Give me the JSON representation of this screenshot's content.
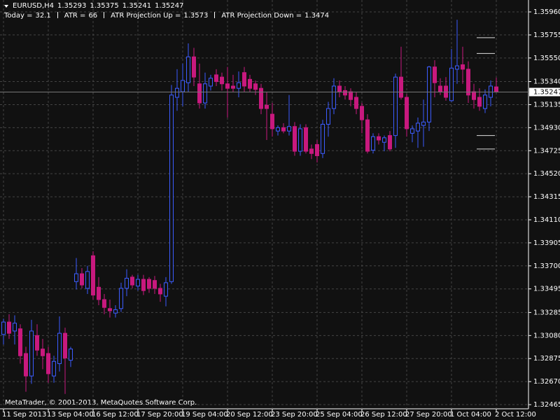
{
  "chart_data": {
    "type": "candlestick",
    "symbol": "EURUSD,H4",
    "footer": "MetaTrader, © 2001-2013, MetaQuotes Software Corp.",
    "up_color": "#3c5cff",
    "down_color": "#c8197e",
    "grid": true,
    "categories": [
      "11 Sep 2013",
      null,
      null,
      null,
      null,
      null,
      null,
      null,
      "13 Sep 04:00",
      null,
      null,
      null,
      null,
      null,
      null,
      null,
      "16 Sep 12:00",
      null,
      null,
      null,
      null,
      null,
      null,
      null,
      "17 Sep 20:00",
      null,
      null,
      null,
      null,
      null,
      null,
      null,
      "19 Sep 04:00",
      null,
      null,
      null,
      null,
      null,
      null,
      null,
      "20 Sep 12:00",
      null,
      null,
      null,
      null,
      null,
      null,
      null,
      "23 Sep 20:00",
      null,
      null,
      null,
      null,
      null,
      null,
      null,
      "25 Sep 04:00",
      null,
      null,
      null,
      null,
      null,
      null,
      null,
      "26 Sep 12:00",
      null,
      null,
      null,
      null,
      null,
      null,
      null,
      "27 Sep 20:00",
      null,
      null,
      null,
      null,
      null,
      null,
      null,
      "1 Oct 04:00",
      null,
      null,
      null,
      null,
      null,
      null,
      null,
      "2 Oct 12:00"
    ],
    "open": [
      1.3309,
      1.332,
      1.3312,
      1.3314,
      1.3292,
      1.3272,
      1.3308,
      1.3296,
      1.3292,
      1.3272,
      1.3283,
      1.331,
      1.3286,
      1.3356,
      1.3363,
      1.335,
      1.3379,
      1.3351,
      1.334,
      1.3332,
      1.3328,
      1.3332,
      1.335,
      1.336,
      1.3352,
      1.3358,
      1.3358,
      1.3357,
      1.335,
      1.3343,
      1.3356,
      1.352,
      1.3525,
      1.3533,
      1.3556,
      1.3532,
      1.3515,
      1.353,
      1.354,
      1.3538,
      1.3532,
      1.353,
      1.3528,
      1.3542,
      1.3536,
      1.3532,
      1.3528,
      1.3513,
      1.3505,
      1.349,
      1.3493,
      1.349,
      1.3494,
      1.3472,
      1.3493,
      1.3474,
      1.3478,
      1.347,
      1.3496,
      1.351,
      1.353,
      1.3526,
      1.3525,
      1.352,
      1.3512,
      1.35,
      1.3473,
      1.3485,
      1.348,
      1.3486,
      1.3486,
      1.3538,
      1.352,
      1.3488,
      1.349,
      1.3495,
      1.3498,
      1.3547,
      1.353,
      1.353,
      1.3517,
      1.3545,
      1.3549,
      1.3545,
      1.3525,
      1.352,
      1.351,
      1.352,
      1.35293
    ],
    "high": [
      1.3323,
      1.3327,
      1.3326,
      1.3318,
      1.3298,
      1.3322,
      1.3318,
      1.3305,
      1.3298,
      1.329,
      1.3325,
      1.3315,
      1.3298,
      1.3377,
      1.3368,
      1.337,
      1.3383,
      1.336,
      1.3345,
      1.334,
      1.3335,
      1.3355,
      1.3367,
      1.3362,
      1.3362,
      1.3362,
      1.336,
      1.3361,
      1.3354,
      1.336,
      1.3531,
      1.3545,
      1.355,
      1.3568,
      1.3564,
      1.355,
      1.3542,
      1.354,
      1.3545,
      1.3542,
      1.3547,
      1.354,
      1.3543,
      1.3547,
      1.354,
      1.3535,
      1.3532,
      1.3525,
      1.3515,
      1.3495,
      1.3497,
      1.3522,
      1.3498,
      1.3496,
      1.3496,
      1.3478,
      1.3482,
      1.35,
      1.3516,
      1.3537,
      1.3535,
      1.353,
      1.3528,
      1.3525,
      1.3515,
      1.3505,
      1.3488,
      1.3488,
      1.3486,
      1.349,
      1.3541,
      1.3565,
      1.3523,
      1.3495,
      1.3502,
      1.3518,
      1.3548,
      1.3553,
      1.3537,
      1.3538,
      1.3563,
      1.3589,
      1.3565,
      1.3552,
      1.3532,
      1.3528,
      1.3527,
      1.3535,
      1.35375
    ],
    "low": [
      1.33,
      1.3305,
      1.33,
      1.3283,
      1.3258,
      1.3265,
      1.329,
      1.3278,
      1.3266,
      1.3266,
      1.3276,
      1.3256,
      1.328,
      1.3349,
      1.335,
      1.3345,
      1.334,
      1.3335,
      1.3327,
      1.3324,
      1.3324,
      1.3329,
      1.3343,
      1.335,
      1.3348,
      1.3344,
      1.3346,
      1.3345,
      1.3338,
      1.3334,
      1.3354,
      1.3508,
      1.3512,
      1.3525,
      1.353,
      1.351,
      1.351,
      1.3526,
      1.353,
      1.3526,
      1.3502,
      1.3525,
      1.352,
      1.3525,
      1.3525,
      1.3522,
      1.3505,
      1.3482,
      1.3485,
      1.3486,
      1.3488,
      1.3486,
      1.3468,
      1.3468,
      1.347,
      1.3465,
      1.3462,
      1.3466,
      1.3485,
      1.3505,
      1.352,
      1.3518,
      1.3512,
      1.3505,
      1.3488,
      1.347,
      1.347,
      1.3478,
      1.3472,
      1.3472,
      1.3475,
      1.3518,
      1.3485,
      1.348,
      1.3475,
      1.3476,
      1.349,
      1.352,
      1.3522,
      1.3517,
      1.3516,
      1.3532,
      1.3532,
      1.3515,
      1.351,
      1.3508,
      1.3506,
      1.3512,
      1.35241
    ],
    "close": [
      1.332,
      1.331,
      1.3319,
      1.329,
      1.3272,
      1.3312,
      1.3295,
      1.329,
      1.3274,
      1.3285,
      1.331,
      1.3288,
      1.3296,
      1.3363,
      1.3353,
      1.3365,
      1.3344,
      1.334,
      1.3333,
      1.333,
      1.3331,
      1.335,
      1.3359,
      1.3353,
      1.3358,
      1.3348,
      1.335,
      1.335,
      1.3345,
      1.3355,
      1.3522,
      1.3528,
      1.3535,
      1.3556,
      1.3538,
      1.3515,
      1.3532,
      1.3537,
      1.3534,
      1.3532,
      1.3528,
      1.3528,
      1.3533,
      1.353,
      1.3528,
      1.3527,
      1.351,
      1.351,
      1.3492,
      1.3493,
      1.349,
      1.3494,
      1.3472,
      1.3492,
      1.3472,
      1.347,
      1.3468,
      1.3496,
      1.351,
      1.353,
      1.3525,
      1.3522,
      1.3518,
      1.351,
      1.35,
      1.3472,
      1.3485,
      1.3482,
      1.3484,
      1.3474,
      1.3538,
      1.352,
      1.3492,
      1.3492,
      1.3497,
      1.3498,
      1.3547,
      1.3533,
      1.3525,
      1.352,
      1.3546,
      1.3548,
      1.3545,
      1.3522,
      1.3518,
      1.3512,
      1.3522,
      1.353,
      1.35247
    ],
    "ylim": [
      1.32428,
      1.36066
    ],
    "yticks": [
      {
        "value": 1.3596,
        "label": "1.35960"
      },
      1.35755,
      {
        "value": 1.3555,
        "label": "1.35550"
      },
      {
        "value": 1.3534,
        "label": "1.35340"
      },
      1.35135,
      {
        "value": 1.3493,
        "label": "1.34930"
      },
      1.34725,
      {
        "value": 1.3452,
        "label": "1.34520"
      },
      1.34315,
      {
        "value": 1.3411,
        "label": "1.34110"
      },
      1.33905,
      {
        "value": 1.337,
        "label": "1.33700"
      },
      1.33495,
      1.33285,
      {
        "value": 1.3308,
        "label": "1.33080"
      },
      1.32875,
      {
        "value": 1.3267,
        "label": "1.32670"
      },
      1.32465
    ],
    "indicator": [
      {
        "label": "Today =",
        "value": 32.1
      },
      {
        "label": "ATR =",
        "value": 66
      },
      {
        "label": "ATR Projection Up =",
        "value": 1.3573
      },
      {
        "label": "ATR Projection Down =",
        "value": 1.3474
      }
    ],
    "levels": [
      1.3559,
      1.3486
    ]
  }
}
